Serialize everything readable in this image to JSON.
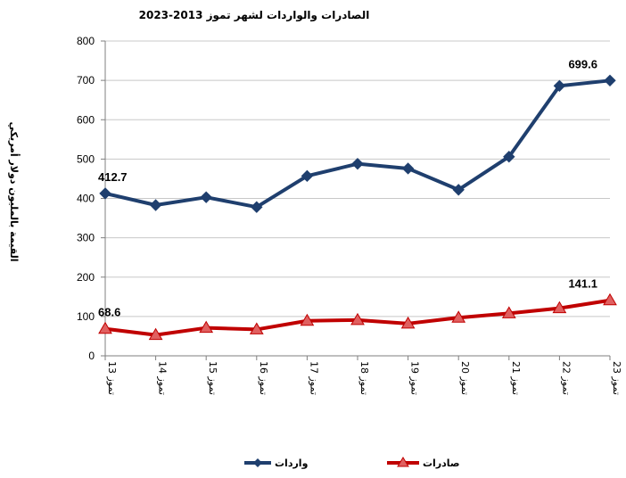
{
  "chart_data": {
    "type": "line",
    "title": "الصادرات والواردات لشهر تموز 2013-2023",
    "ylabel": "القيمة بالمليون دولار أمريكي",
    "xlabel": "",
    "ylim": [
      0,
      800
    ],
    "yticks": [
      0,
      100,
      200,
      300,
      400,
      500,
      600,
      700,
      800
    ],
    "grid": true,
    "legend_position": "bottom",
    "categories": [
      "تموز 13",
      "تموز 14",
      "تموز 15",
      "تموز 16",
      "تموز 17",
      "تموز 18",
      "تموز 19",
      "تموز 20",
      "تموز 21",
      "تموز 22",
      "تموز 23"
    ],
    "series": [
      {
        "name": "واردات",
        "color": "#1F3F6E",
        "marker": "diamond",
        "values": [
          412.7,
          383,
          403,
          378,
          457,
          488,
          476,
          422,
          506,
          686,
          699.6
        ],
        "labels": [
          "412.7",
          "",
          "",
          "",
          "",
          "",
          "",
          "",
          "",
          "",
          "699.6"
        ]
      },
      {
        "name": "صادرات",
        "color": "#C00000",
        "marker": "triangle",
        "values": [
          68.6,
          53,
          71,
          67,
          89,
          91,
          82,
          97,
          108,
          121,
          141.1
        ],
        "labels": [
          "68.6",
          "",
          "",
          "",
          "",
          "",
          "",
          "",
          "",
          "",
          "141.1"
        ]
      }
    ]
  }
}
